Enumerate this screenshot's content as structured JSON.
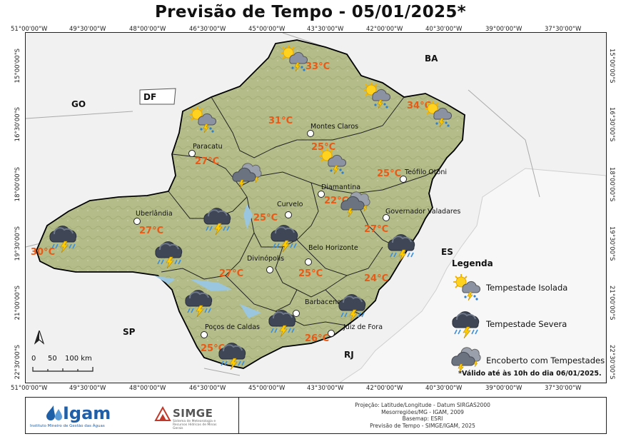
{
  "title": "Previsão de Tempo - 05/01/2025*",
  "coords": {
    "top": [
      "51°00'00\"W",
      "49°30'00\"W",
      "48°00'00\"W",
      "46°30'00\"W",
      "45°00'00\"W",
      "43°30'00\"W",
      "42°00'00\"W",
      "40°30'00\"W",
      "39°00'00\"W",
      "37°30'00\"W"
    ],
    "left": [
      "15°00'00\"S",
      "16°30'00\"S",
      "18°00'00\"S",
      "19°30'00\"S",
      "21°00'00\"S",
      "22°30'00\"S"
    ]
  },
  "regions": {
    "go": "GO",
    "df": "DF",
    "ba": "BA",
    "es": "ES",
    "sp": "SP",
    "rj": "RJ"
  },
  "cities": [
    {
      "name": "Montes Claros"
    },
    {
      "name": "Paracatu"
    },
    {
      "name": "Teófilo Otoni"
    },
    {
      "name": "Diamantina"
    },
    {
      "name": "Curvelo"
    },
    {
      "name": "Governador Valadares"
    },
    {
      "name": "Uberlândia"
    },
    {
      "name": "Belo Horizonte"
    },
    {
      "name": "Divinópolis"
    },
    {
      "name": "Barbacena"
    },
    {
      "name": "Poços de Caldas"
    },
    {
      "name": "Juiz de Fora"
    }
  ],
  "temperatures": [
    "33°C",
    "34°C",
    "31°C",
    "25°C",
    "27°C",
    "25°C",
    "22°C",
    "25°C",
    "27°C",
    "27°C",
    "30°C",
    "27°C",
    "25°C",
    "24°C",
    "26°C",
    "25°C"
  ],
  "forecast_icons": [
    {
      "type": "isolated-storm-icon"
    },
    {
      "type": "isolated-storm-icon"
    },
    {
      "type": "isolated-storm-icon"
    },
    {
      "type": "isolated-storm-icon"
    },
    {
      "type": "isolated-storm-icon"
    },
    {
      "type": "overcast-storm-icon"
    },
    {
      "type": "overcast-storm-icon"
    },
    {
      "type": "severe-storm-icon"
    },
    {
      "type": "severe-storm-icon"
    },
    {
      "type": "severe-storm-icon"
    },
    {
      "type": "severe-storm-icon"
    },
    {
      "type": "severe-storm-icon"
    },
    {
      "type": "severe-storm-icon"
    },
    {
      "type": "severe-storm-icon"
    },
    {
      "type": "severe-storm-icon"
    },
    {
      "type": "severe-storm-icon"
    },
    {
      "type": "overcast-storm-icon"
    }
  ],
  "legend": {
    "title": "Legenda",
    "items": [
      {
        "label": "Tempestade Isolada",
        "icon": "isolated-storm-icon"
      },
      {
        "label": "Tempestade Severa",
        "icon": "severe-storm-icon"
      },
      {
        "label": "Encoberto com Tempestades",
        "icon": "overcast-storm-icon"
      }
    ]
  },
  "validity_note": "*Válido até às 10h do dia 06/01/2025.",
  "scale": {
    "labels": [
      "0",
      "50",
      "100 km"
    ]
  },
  "north_arrow": "north-arrow-icon",
  "footer": {
    "igam_logo": "Igam",
    "igam_subtitle": "Instituto Mineiro de Gestão das Águas",
    "simge_logo": "SIMGE",
    "simge_subtitle": "Sistema de Meteorologia e Recursos Hídricos de Minas Gerais",
    "credits": [
      "Projeção: Latitude/Longitude - Datum SIRGAS2000",
      "Mesorregiões/MG - IGAM, 2009",
      "Basemap: ESRI",
      "Previsão de Tempo - SIMGE/IGAM, 2025"
    ]
  },
  "colors": {
    "temperature": "#e85a17",
    "map_fill": "#b7bf8c",
    "neighbor_fill": "#f2f2f2",
    "water": "#9ac6e0",
    "igam_blue": "#1f5fa8"
  }
}
